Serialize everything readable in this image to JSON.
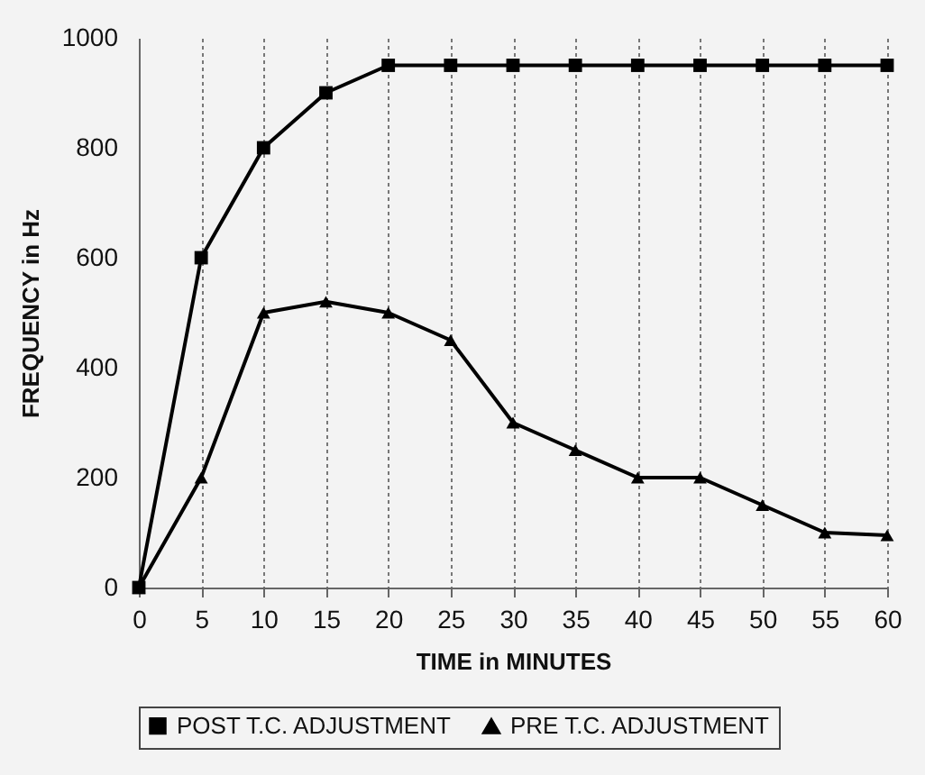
{
  "chart_data": {
    "type": "line",
    "xlabel": "TIME in MINUTES",
    "ylabel": "FREQUENCY in Hz",
    "x": [
      0,
      5,
      10,
      15,
      20,
      25,
      30,
      35,
      40,
      45,
      50,
      55,
      60
    ],
    "series": [
      {
        "name": "POST T.C. ADJUSTMENT",
        "color": "#000000",
        "marker": "square",
        "values": [
          0,
          600,
          800,
          900,
          950,
          950,
          950,
          950,
          950,
          950,
          950,
          950,
          950
        ]
      },
      {
        "name": "PRE T.C. ADJUSTMENT",
        "color": "#000000",
        "marker": "triangle",
        "values": [
          0,
          200,
          500,
          520,
          500,
          450,
          300,
          250,
          200,
          200,
          150,
          100,
          95
        ]
      }
    ],
    "xlim": [
      0,
      60
    ],
    "xticks": [
      0,
      5,
      10,
      15,
      20,
      25,
      30,
      35,
      40,
      45,
      50,
      55,
      60
    ],
    "ylim": [
      0,
      1000
    ],
    "yticks": [
      0,
      200,
      400,
      600,
      800,
      1000
    ],
    "grid": "x",
    "legend": "bottom",
    "line_style": "solid"
  }
}
